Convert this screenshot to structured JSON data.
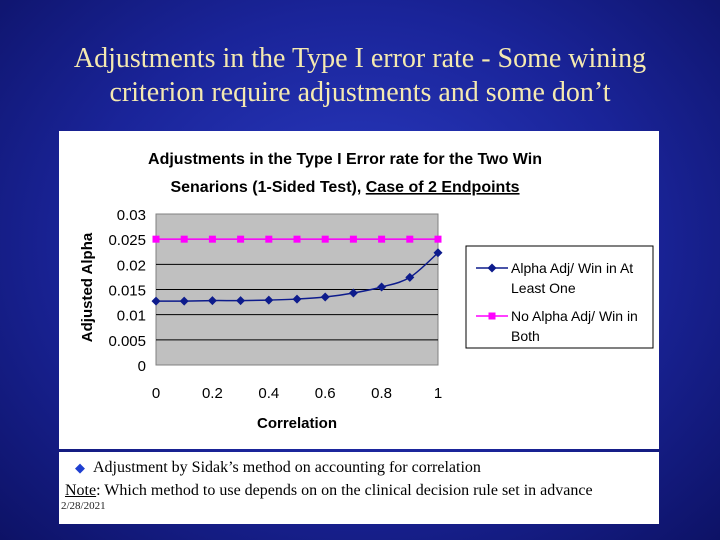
{
  "slide": {
    "title": "Adjustments in the Type I error rate - Some wining criterion require adjustments and some don’t"
  },
  "chart_data": {
    "type": "line",
    "title_line1": "Adjustments in the Type I Error rate for the Two Win",
    "title_line2a": "Senarions (1-Sided Test), ",
    "title_line2b": "Case of 2 Endpoints",
    "xlabel": "Correlation",
    "ylabel": "Adjusted Alpha",
    "x": [
      0,
      0.1,
      0.2,
      0.3,
      0.4,
      0.5,
      0.6,
      0.7,
      0.8,
      0.9,
      1
    ],
    "x_ticks": [
      "0",
      "0.2",
      "0.4",
      "0.6",
      "0.8",
      "1"
    ],
    "y_ticks": [
      "0",
      "0.005",
      "0.01",
      "0.015",
      "0.02",
      "0.025",
      "0.03"
    ],
    "xlim": [
      0,
      1
    ],
    "ylim": [
      0,
      0.03
    ],
    "grid": true,
    "legend_position": "right",
    "plot_background": "#c0c0c0",
    "series": [
      {
        "name_line1": "Alpha Adj/ Win in At",
        "name_line2": "Least One",
        "color": "#0d1b8c",
        "marker": "diamond",
        "values": [
          0.0127,
          0.0127,
          0.0128,
          0.0128,
          0.0129,
          0.0131,
          0.0135,
          0.0143,
          0.0155,
          0.0174,
          0.0223
        ]
      },
      {
        "name_line1": "No Alpha Adj/ Win in",
        "name_line2": "Both",
        "color": "#ff00ff",
        "marker": "square",
        "values": [
          0.025,
          0.025,
          0.025,
          0.025,
          0.025,
          0.025,
          0.025,
          0.025,
          0.025,
          0.025,
          0.025
        ]
      }
    ]
  },
  "notes": {
    "bullet_icon": "diamond-bullet-icon",
    "bullet_text": "Adjustment by Sidak’s method on accounting for correlation",
    "note_label": "Note",
    "note_text": ": Which method to use depends on on the clinical decision rule set in advance",
    "date": "2/28/2021"
  }
}
